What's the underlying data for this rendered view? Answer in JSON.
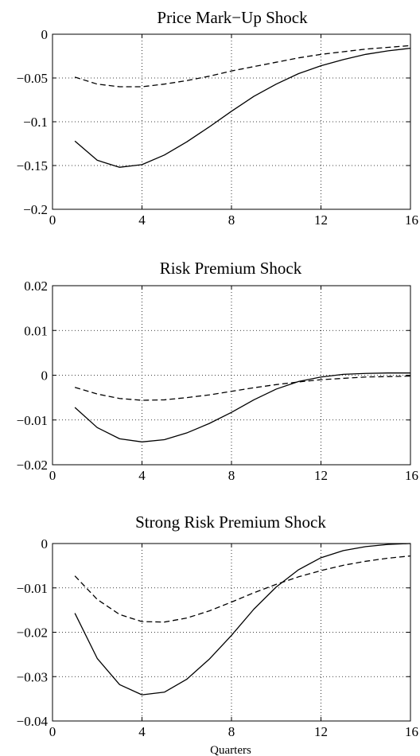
{
  "chart_data": [
    {
      "type": "line",
      "title": "Price Mark−Up Shock",
      "xlabel": "",
      "ylabel": "",
      "xlim": [
        0,
        16
      ],
      "ylim": [
        -0.2,
        0
      ],
      "xticks": [
        0,
        4,
        8,
        12,
        16
      ],
      "xtick_labels": [
        "0",
        "4",
        "8",
        "12",
        "16"
      ],
      "yticks": [
        0,
        -0.05,
        -0.1,
        -0.15,
        -0.2
      ],
      "ytick_labels": [
        "0",
        "−0.05",
        "−0.1",
        "−0.15",
        "−0.2"
      ],
      "grid": true,
      "x": [
        1,
        2,
        3,
        4,
        5,
        6,
        7,
        8,
        9,
        10,
        11,
        12,
        13,
        14,
        15,
        16
      ],
      "series": [
        {
          "style": "solid",
          "values": [
            -0.122,
            -0.144,
            -0.152,
            -0.149,
            -0.138,
            -0.123,
            -0.106,
            -0.088,
            -0.071,
            -0.057,
            -0.045,
            -0.036,
            -0.029,
            -0.023,
            -0.019,
            -0.016
          ]
        },
        {
          "style": "dashed",
          "values": [
            -0.049,
            -0.057,
            -0.06,
            -0.06,
            -0.057,
            -0.053,
            -0.048,
            -0.042,
            -0.037,
            -0.032,
            -0.027,
            -0.023,
            -0.02,
            -0.017,
            -0.015,
            -0.013
          ]
        }
      ]
    },
    {
      "type": "line",
      "title": "Risk Premium Shock",
      "xlabel": "",
      "ylabel": "",
      "xlim": [
        0,
        16
      ],
      "ylim": [
        -0.02,
        0.02
      ],
      "xticks": [
        0,
        4,
        8,
        12,
        16
      ],
      "xtick_labels": [
        "0",
        "4",
        "8",
        "12",
        "16"
      ],
      "yticks": [
        0.02,
        0.01,
        0,
        -0.01,
        -0.02
      ],
      "ytick_labels": [
        "0.02",
        "0.01",
        "0",
        "−0.01",
        "−0.02"
      ],
      "grid": true,
      "x": [
        1,
        2,
        3,
        4,
        5,
        6,
        7,
        8,
        9,
        10,
        11,
        12,
        13,
        14,
        15,
        16
      ],
      "series": [
        {
          "style": "solid",
          "values": [
            -0.0072,
            -0.0117,
            -0.0142,
            -0.0149,
            -0.0144,
            -0.0129,
            -0.0108,
            -0.0083,
            -0.0055,
            -0.0031,
            -0.0014,
            -0.0004,
            0.0002,
            0.0004,
            0.0005,
            0.0005
          ]
        },
        {
          "style": "dashed",
          "values": [
            -0.0027,
            -0.0042,
            -0.0052,
            -0.0056,
            -0.0055,
            -0.005,
            -0.0044,
            -0.0036,
            -0.0028,
            -0.0021,
            -0.0015,
            -0.001,
            -0.0007,
            -0.0004,
            -0.0003,
            -0.0002
          ]
        }
      ]
    },
    {
      "type": "line",
      "title": "Strong Risk Premium Shock",
      "xlabel": "Quarters",
      "ylabel": "",
      "xlim": [
        0,
        16
      ],
      "ylim": [
        -0.04,
        0
      ],
      "xticks": [
        0,
        4,
        8,
        12,
        16
      ],
      "xtick_labels": [
        "0",
        "4",
        "8",
        "12",
        "16"
      ],
      "yticks": [
        0,
        -0.01,
        -0.02,
        -0.03,
        -0.04
      ],
      "ytick_labels": [
        "0",
        "−0.01",
        "−0.02",
        "−0.03",
        "−0.04"
      ],
      "grid": true,
      "x": [
        1,
        2,
        3,
        4,
        5,
        6,
        7,
        8,
        9,
        10,
        11,
        12,
        13,
        14,
        15,
        16
      ],
      "series": [
        {
          "style": "solid",
          "values": [
            -0.0157,
            -0.0259,
            -0.0318,
            -0.0341,
            -0.0335,
            -0.0306,
            -0.0261,
            -0.0207,
            -0.0148,
            -0.0098,
            -0.0059,
            -0.0032,
            -0.0016,
            -0.0007,
            -0.0002,
            0.0
          ]
        },
        {
          "style": "dashed",
          "values": [
            -0.0073,
            -0.0126,
            -0.016,
            -0.0176,
            -0.0177,
            -0.0168,
            -0.0152,
            -0.0132,
            -0.0111,
            -0.0092,
            -0.0075,
            -0.0061,
            -0.0049,
            -0.004,
            -0.0033,
            -0.0028
          ]
        }
      ]
    }
  ]
}
